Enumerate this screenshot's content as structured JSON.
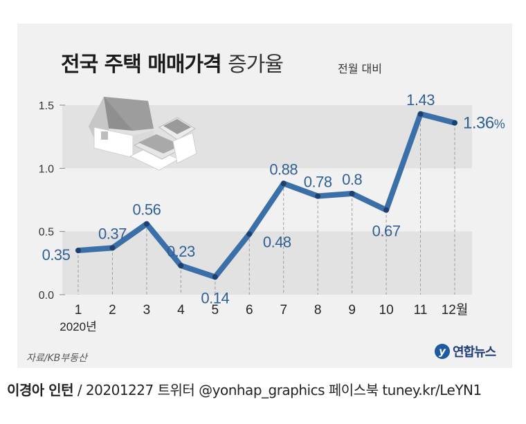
{
  "title": {
    "main": "전국 주택 매매가격",
    "rest": "증가율",
    "sub": "전월 대비"
  },
  "source": "자료/KB부동산",
  "logo": {
    "mark": "y",
    "name": "연합뉴스"
  },
  "footer": {
    "author": "이경아 인턴",
    "rest": "/ 20201227   트위터 @yonhap_graphics  페이스북 tuney.kr/LeYN1"
  },
  "colors": {
    "line": "#3a6fa8",
    "label": "#2f5f94",
    "band": "#e2e2e2",
    "panel": "#f1f1f1"
  },
  "icon": "house-illustration",
  "chart_data": {
    "type": "line",
    "title": "전국 주택 매매가격 증가율",
    "subtitle": "전월 대비",
    "x": [
      "1",
      "2",
      "3",
      "4",
      "5",
      "6",
      "7",
      "8",
      "9",
      "10",
      "11",
      "12월"
    ],
    "x_sublabel": "2020년",
    "series": [
      {
        "values": [
          0.35,
          0.37,
          0.56,
          0.23,
          0.14,
          0.48,
          0.88,
          0.78,
          0.8,
          0.67,
          1.43,
          1.36
        ]
      }
    ],
    "value_labels": [
      "0.35",
      "0.37",
      "0.56",
      "0.23",
      "0.14",
      "0.48",
      "0.88",
      "0.78",
      "0.8",
      "0.67",
      "1.43",
      "1.36"
    ],
    "last_label_unit": "%",
    "y_ticks": [
      "0.0",
      "0.5",
      "1.0",
      "1.5"
    ],
    "ylim": [
      0,
      1.5
    ],
    "grid": "alternating horizontal bands"
  }
}
